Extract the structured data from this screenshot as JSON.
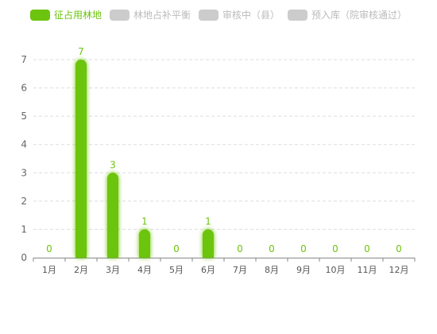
{
  "chart_data": {
    "type": "bar",
    "categories": [
      "1月",
      "2月",
      "3月",
      "4月",
      "5月",
      "6月",
      "7月",
      "8月",
      "9月",
      "10月",
      "11月",
      "12月"
    ],
    "series": [
      {
        "name": "征占用林地",
        "color": "#6cc40e",
        "active": true,
        "values": [
          0,
          7,
          3,
          1,
          0,
          1,
          0,
          0,
          0,
          0,
          0,
          0
        ]
      },
      {
        "name": "林地占补平衡",
        "color": "#cccccc",
        "active": false
      },
      {
        "name": "审核中（县）",
        "color": "#cccccc",
        "active": false
      },
      {
        "name": "预入库（院审核通过）",
        "color": "#cccccc",
        "active": false
      }
    ],
    "ylim": [
      0,
      7
    ],
    "yticks": [
      "0",
      "1",
      "2",
      "3",
      "4",
      "5",
      "6",
      "7"
    ],
    "grid": true,
    "legend_position": "top-left",
    "data_labels": true
  }
}
